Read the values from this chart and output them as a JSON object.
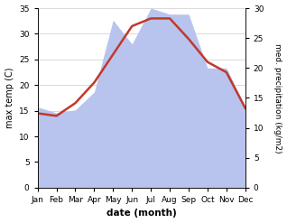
{
  "months": [
    "Jan",
    "Feb",
    "Mar",
    "Apr",
    "May",
    "Jun",
    "Jul",
    "Aug",
    "Sep",
    "Oct",
    "Nov",
    "Dec"
  ],
  "month_x": [
    1,
    2,
    3,
    4,
    5,
    6,
    7,
    8,
    9,
    10,
    11,
    12
  ],
  "temp": [
    14.5,
    14.0,
    16.5,
    20.5,
    26.0,
    31.5,
    33.0,
    33.0,
    29.0,
    24.5,
    22.5,
    15.5
  ],
  "precip_mm": [
    13.5,
    12.5,
    13.0,
    16.0,
    28.0,
    24.0,
    30.0,
    29.0,
    29.0,
    20.0,
    20.0,
    13.5
  ],
  "temp_color": "#c0392b",
  "precip_color": "#b8c4ee",
  "title": "",
  "xlabel": "date (month)",
  "ylabel_left": "max temp (C)",
  "ylabel_right": "med. precipitation (kg/m2)",
  "ylim_left": [
    0,
    35
  ],
  "ylim_right": [
    0,
    30
  ],
  "yticks_left": [
    0,
    5,
    10,
    15,
    20,
    25,
    30,
    35
  ],
  "yticks_right": [
    0,
    5,
    10,
    15,
    20,
    25,
    30
  ],
  "grid_color": "#cccccc"
}
